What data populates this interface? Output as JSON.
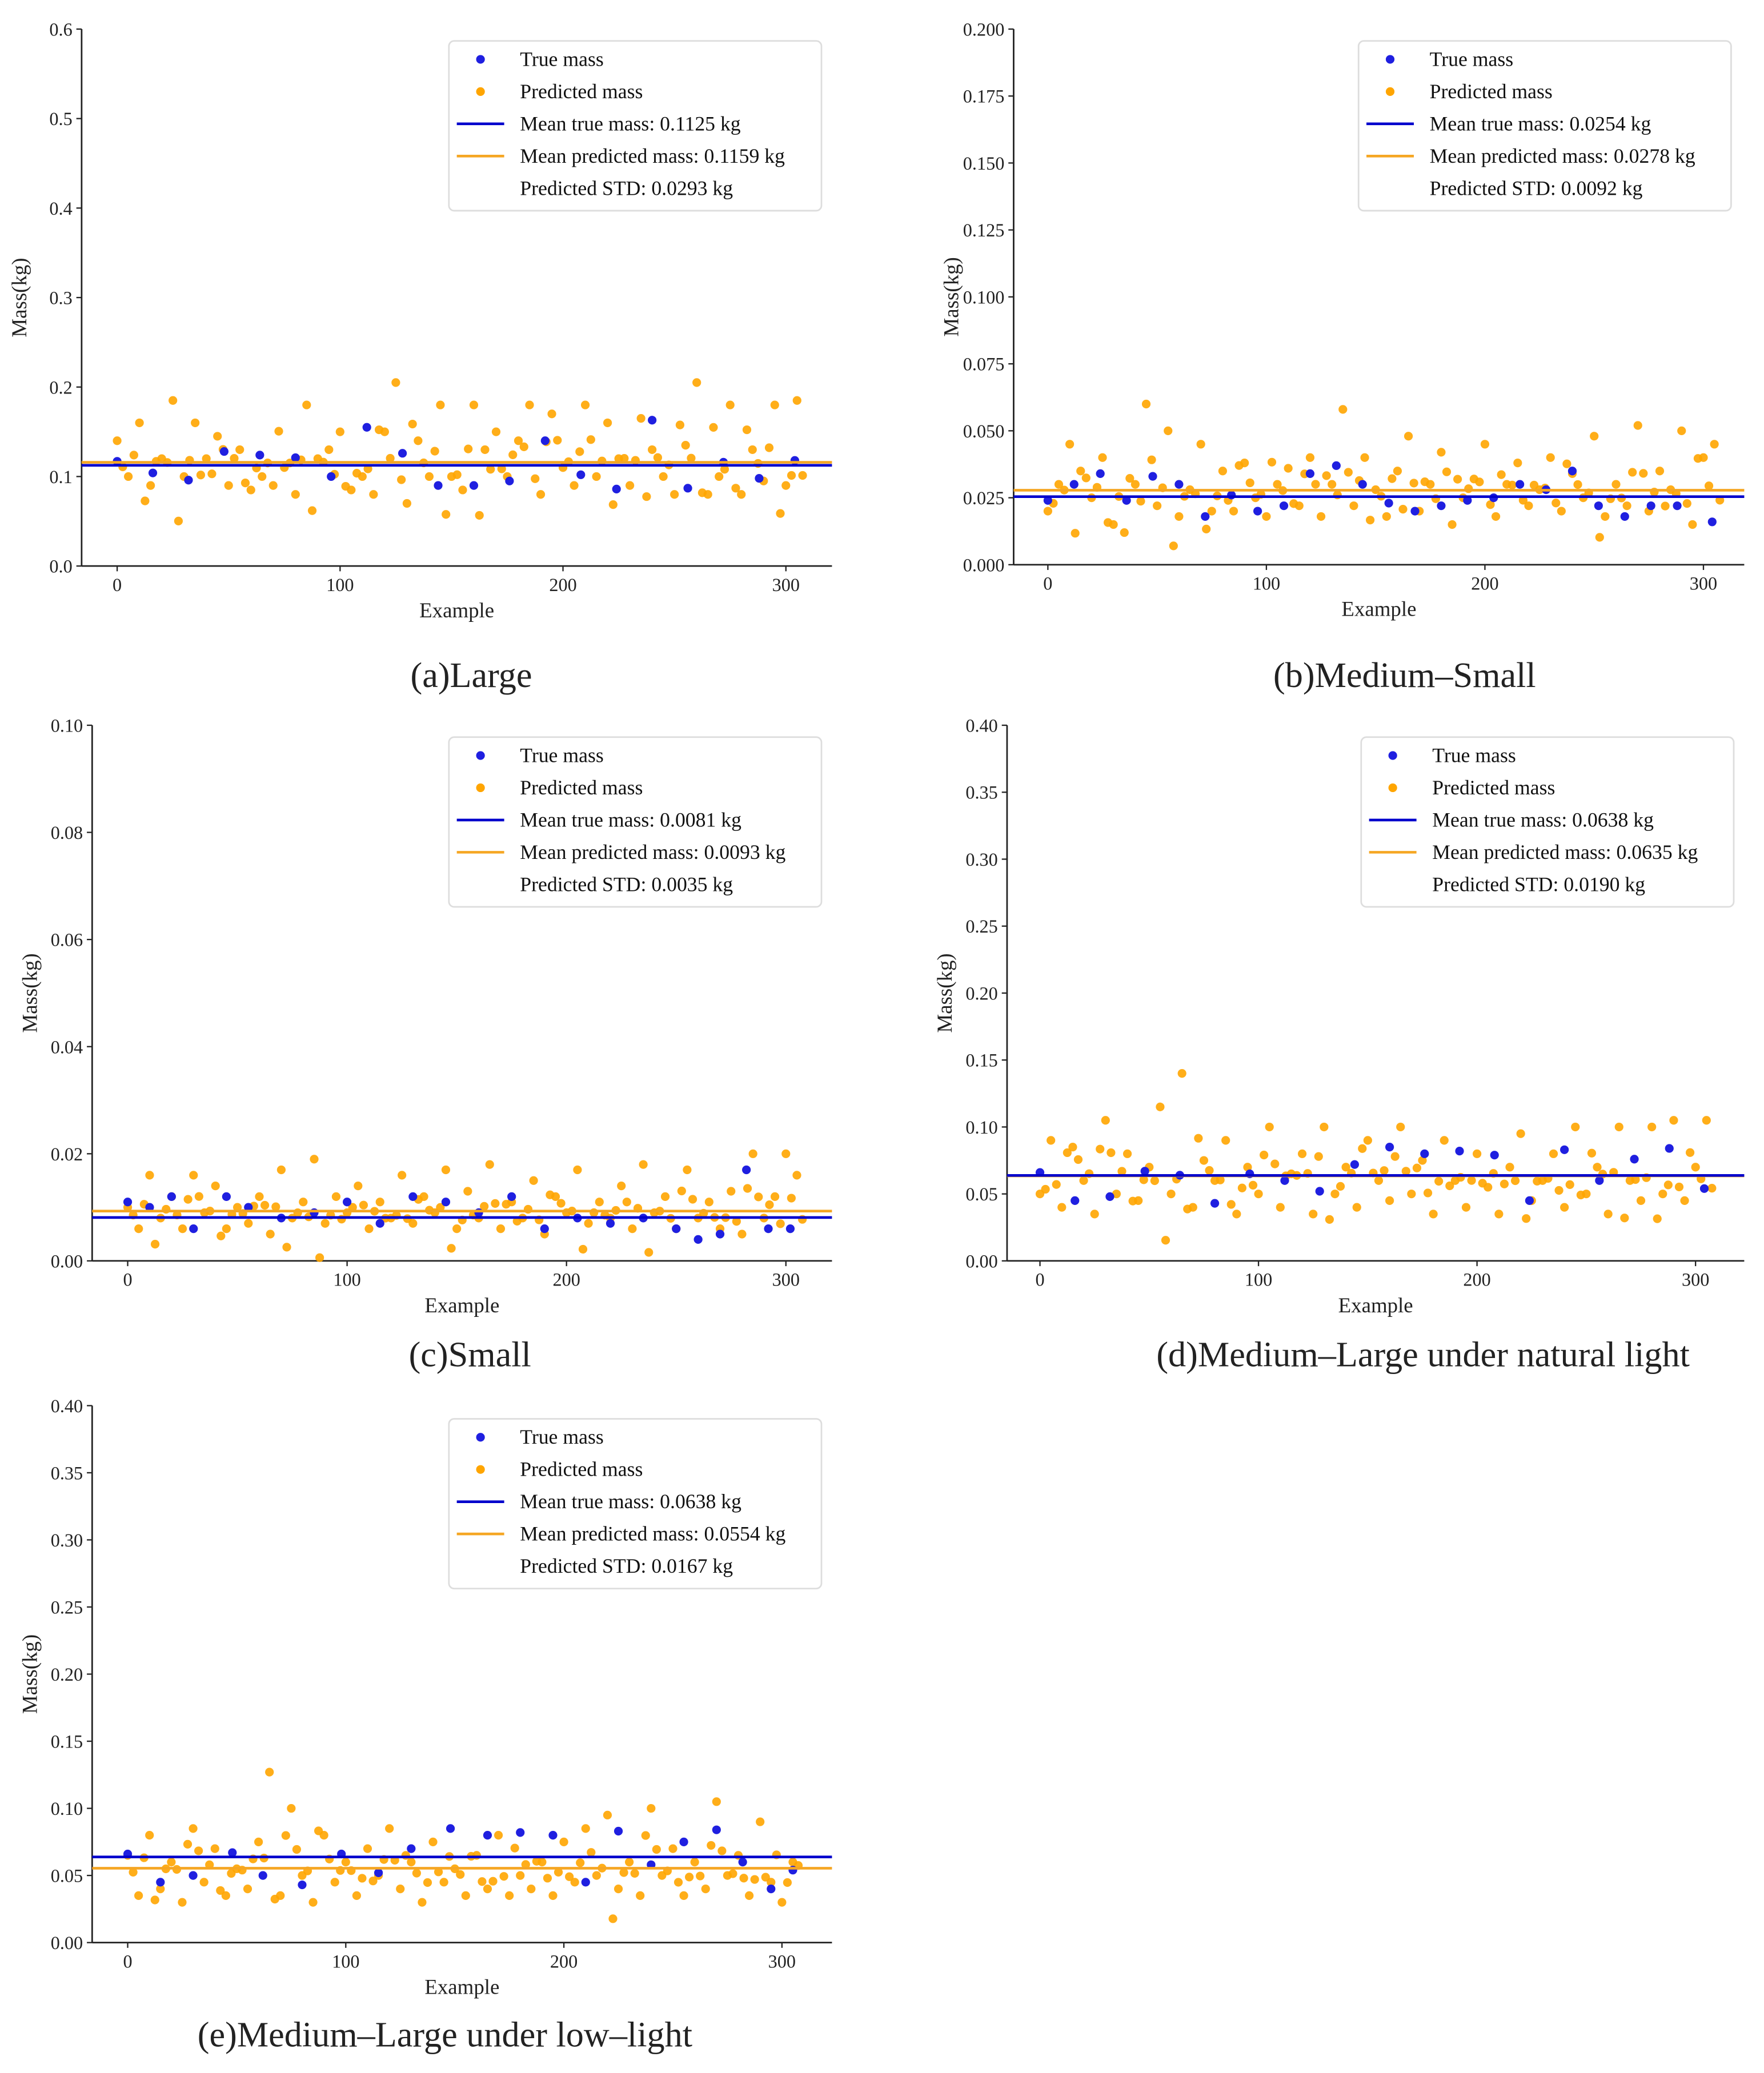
{
  "colors": {
    "true": "#1f1fe0",
    "predicted": "#ffa500",
    "true_line": "#0000cc",
    "pred_line": "#f5a623"
  },
  "chart_data": [
    {
      "type": "scatter",
      "caption": "(a)Large",
      "xlabel": "Example",
      "ylabel": "Mass(kg)",
      "xlim": [
        -16,
        322
      ],
      "ylim": [
        0,
        0.6
      ],
      "xticks": [
        {
          "v": 0,
          "l": "0"
        },
        {
          "v": 100,
          "l": "100"
        },
        {
          "v": 200,
          "l": "200"
        },
        {
          "v": 300,
          "l": "300"
        }
      ],
      "yticks": [
        {
          "v": 0,
          "l": "0.0"
        },
        {
          "v": 0.1,
          "l": "0.1"
        },
        {
          "v": 0.2,
          "l": "0.2"
        },
        {
          "v": 0.3,
          "l": "0.3"
        },
        {
          "v": 0.4,
          "l": "0.4"
        },
        {
          "v": 0.5,
          "l": "0.5"
        },
        {
          "v": 0.6,
          "l": "0.6"
        }
      ],
      "legend": {
        "true": "True mass",
        "predicted": "Predicted mass",
        "mean_true": "Mean true mass: 0.1125 kg",
        "mean_pred": "Mean predicted mass: 0.1159 kg",
        "std": "Predicted STD: 0.0293 kg",
        "placement": "top-right"
      },
      "mean_true": 0.1125,
      "mean_pred": 0.1159,
      "pred_step": 5,
      "predicted": [
        0.14,
        0.1,
        0.16,
        0.09,
        0.12,
        0.185,
        0.1,
        0.16,
        0.12,
        0.145,
        0.09,
        0.13,
        0.085,
        0.1,
        0.09,
        0.11,
        0.08,
        0.18,
        0.12,
        0.13,
        0.15,
        0.085,
        0.1,
        0.08,
        0.15,
        0.205,
        0.07,
        0.14,
        0.1,
        0.18,
        0.1,
        0.085,
        0.18,
        0.13,
        0.15,
        0.1,
        0.14,
        0.18,
        0.08,
        0.17,
        0.11,
        0.09,
        0.18,
        0.1,
        0.16,
        0.12,
        0.09,
        0.165,
        0.13,
        0.1,
        0.08,
        0.135,
        0.205,
        0.08,
        0.1,
        0.18,
        0.08,
        0.13,
        0.095,
        0.18,
        0.09,
        0.185
      ],
      "true_x": [
        0,
        16,
        32,
        48,
        64,
        80,
        96,
        112,
        128,
        144,
        160,
        176,
        192,
        208,
        224,
        240,
        256,
        272,
        288,
        304
      ],
      "true_y": [
        0.117,
        0.104,
        0.096,
        0.128,
        0.124,
        0.121,
        0.1,
        0.155,
        0.126,
        0.09,
        0.09,
        0.095,
        0.14,
        0.102,
        0.086,
        0.163,
        0.087,
        0.116,
        0.098,
        0.118
      ]
    },
    {
      "type": "scatter",
      "caption": "(b)Medium–Small",
      "xlabel": "Example",
      "ylabel": "Mass(kg)",
      "xlim": [
        -16,
        322
      ],
      "ylim": [
        0,
        0.2
      ],
      "xticks": [
        {
          "v": 0,
          "l": "0"
        },
        {
          "v": 100,
          "l": "100"
        },
        {
          "v": 200,
          "l": "200"
        },
        {
          "v": 300,
          "l": "300"
        }
      ],
      "yticks": [
        {
          "v": 0,
          "l": "0.000"
        },
        {
          "v": 0.025,
          "l": "0.025"
        },
        {
          "v": 0.05,
          "l": "0.050"
        },
        {
          "v": 0.075,
          "l": "0.075"
        },
        {
          "v": 0.1,
          "l": "0.100"
        },
        {
          "v": 0.125,
          "l": "0.125"
        },
        {
          "v": 0.15,
          "l": "0.150"
        },
        {
          "v": 0.175,
          "l": "0.175"
        },
        {
          "v": 0.2,
          "l": "0.200"
        }
      ],
      "legend": {
        "true": "True mass",
        "predicted": "Predicted mass",
        "mean_true": "Mean true mass: 0.0254 kg",
        "mean_pred": "Mean predicted mass: 0.0278 kg",
        "std": "Predicted STD: 0.0092 kg",
        "placement": "top-right"
      },
      "mean_true": 0.0254,
      "mean_pred": 0.0278,
      "pred_step": 5,
      "predicted": [
        0.02,
        0.03,
        0.045,
        0.035,
        0.025,
        0.04,
        0.015,
        0.012,
        0.03,
        0.06,
        0.022,
        0.05,
        0.018,
        0.028,
        0.045,
        0.02,
        0.035,
        0.02,
        0.038,
        0.025,
        0.018,
        0.03,
        0.036,
        0.022,
        0.04,
        0.018,
        0.03,
        0.058,
        0.022,
        0.04,
        0.028,
        0.018,
        0.035,
        0.048,
        0.02,
        0.03,
        0.042,
        0.015,
        0.025,
        0.032,
        0.045,
        0.018,
        0.03,
        0.038,
        0.022,
        0.028,
        0.04,
        0.02,
        0.034,
        0.025,
        0.048,
        0.018,
        0.03,
        0.022,
        0.052,
        0.02,
        0.035,
        0.028,
        0.05,
        0.015,
        0.04,
        0.045
      ],
      "true_x": [
        0,
        12,
        24,
        36,
        48,
        60,
        72,
        84,
        96,
        108,
        120,
        132,
        144,
        156,
        168,
        180,
        192,
        204,
        216,
        228,
        240,
        252,
        264,
        276,
        288,
        304
      ],
      "true_y": [
        0.024,
        0.03,
        0.034,
        0.024,
        0.033,
        0.03,
        0.018,
        0.026,
        0.02,
        0.022,
        0.034,
        0.037,
        0.03,
        0.023,
        0.02,
        0.022,
        0.024,
        0.025,
        0.03,
        0.028,
        0.035,
        0.022,
        0.018,
        0.022,
        0.022,
        0.016
      ]
    },
    {
      "type": "scatter",
      "caption": "(c)Small",
      "xlabel": "Example",
      "ylabel": "Mass(kg)",
      "xlim": [
        -16,
        322
      ],
      "ylim": [
        0,
        0.1
      ],
      "xticks": [
        {
          "v": 0,
          "l": "0"
        },
        {
          "v": 100,
          "l": "100"
        },
        {
          "v": 200,
          "l": "200"
        },
        {
          "v": 300,
          "l": "300"
        }
      ],
      "yticks": [
        {
          "v": 0,
          "l": "0.00"
        },
        {
          "v": 0.02,
          "l": "0.02"
        },
        {
          "v": 0.04,
          "l": "0.04"
        },
        {
          "v": 0.06,
          "l": "0.06"
        },
        {
          "v": 0.08,
          "l": "0.08"
        },
        {
          "v": 0.1,
          "l": "0.10"
        }
      ],
      "legend": {
        "true": "True mass",
        "predicted": "Predicted mass",
        "mean_true": "Mean true mass: 0.0081 kg",
        "mean_pred": "Mean predicted mass: 0.0093 kg",
        "std": "Predicted STD: 0.0035 kg",
        "placement": "top-right"
      },
      "mean_true": 0.0081,
      "mean_pred": 0.0093,
      "pred_step": 5,
      "predicted": [
        0.01,
        0.006,
        0.016,
        0.008,
        0.012,
        0.006,
        0.016,
        0.009,
        0.014,
        0.006,
        0.01,
        0.007,
        0.012,
        0.005,
        0.017,
        0.008,
        0.011,
        0.019,
        0.007,
        0.012,
        0.009,
        0.014,
        0.006,
        0.011,
        0.008,
        0.016,
        0.007,
        0.012,
        0.009,
        0.017,
        0.006,
        0.013,
        0.008,
        0.018,
        0.006,
        0.011,
        0.008,
        0.015,
        0.005,
        0.012,
        0.009,
        0.017,
        0.007,
        0.011,
        0.008,
        0.014,
        0.006,
        0.018,
        0.009,
        0.012,
        0.006,
        0.017,
        0.008,
        0.011,
        0.006,
        0.013,
        0.005,
        0.02,
        0.008,
        0.012,
        0.02,
        0.016
      ],
      "true_x": [
        0,
        10,
        20,
        30,
        45,
        55,
        70,
        85,
        100,
        115,
        130,
        145,
        160,
        175,
        190,
        205,
        220,
        235,
        250,
        260,
        270,
        282,
        292,
        302
      ],
      "true_y": [
        0.011,
        0.01,
        0.012,
        0.006,
        0.012,
        0.01,
        0.008,
        0.009,
        0.011,
        0.007,
        0.012,
        0.011,
        0.009,
        0.012,
        0.006,
        0.008,
        0.007,
        0.008,
        0.006,
        0.004,
        0.005,
        0.017,
        0.006,
        0.006
      ]
    },
    {
      "type": "scatter",
      "caption": "(d)Medium–Large under natural light",
      "xlabel": "Example",
      "ylabel": "Mass(kg)",
      "xlim": [
        -16,
        322
      ],
      "ylim": [
        0,
        0.4
      ],
      "xticks": [
        {
          "v": 0,
          "l": "0"
        },
        {
          "v": 100,
          "l": "100"
        },
        {
          "v": 200,
          "l": "200"
        },
        {
          "v": 300,
          "l": "300"
        }
      ],
      "yticks": [
        {
          "v": 0,
          "l": "0.00"
        },
        {
          "v": 0.05,
          "l": "0.05"
        },
        {
          "v": 0.1,
          "l": "0.10"
        },
        {
          "v": 0.15,
          "l": "0.15"
        },
        {
          "v": 0.2,
          "l": "0.20"
        },
        {
          "v": 0.25,
          "l": "0.25"
        },
        {
          "v": 0.3,
          "l": "0.30"
        },
        {
          "v": 0.35,
          "l": "0.35"
        },
        {
          "v": 0.4,
          "l": "0.40"
        }
      ],
      "legend": {
        "true": "True mass",
        "predicted": "Predicted mass",
        "mean_true": "Mean true mass: 0.0638 kg",
        "mean_pred": "Mean predicted mass: 0.0635 kg",
        "std": "Predicted STD: 0.0190 kg",
        "placement": "top-right"
      },
      "mean_true": 0.0638,
      "mean_pred": 0.0635,
      "pred_step": 5,
      "predicted": [
        0.05,
        0.09,
        0.04,
        0.085,
        0.06,
        0.035,
        0.105,
        0.05,
        0.08,
        0.045,
        0.07,
        0.115,
        0.05,
        0.14,
        0.04,
        0.075,
        0.06,
        0.09,
        0.035,
        0.07,
        0.05,
        0.1,
        0.04,
        0.065,
        0.08,
        0.035,
        0.1,
        0.05,
        0.07,
        0.04,
        0.09,
        0.06,
        0.045,
        0.1,
        0.05,
        0.075,
        0.035,
        0.09,
        0.06,
        0.04,
        0.08,
        0.055,
        0.035,
        0.07,
        0.095,
        0.045,
        0.06,
        0.08,
        0.04,
        0.1,
        0.05,
        0.07,
        0.035,
        0.1,
        0.06,
        0.045,
        0.1,
        0.05,
        0.105,
        0.045,
        0.07,
        0.105
      ],
      "true_x": [
        0,
        16,
        32,
        48,
        64,
        80,
        96,
        112,
        128,
        144,
        160,
        176,
        192,
        208,
        224,
        240,
        256,
        272,
        288,
        304
      ],
      "true_y": [
        0.066,
        0.045,
        0.048,
        0.067,
        0.064,
        0.043,
        0.065,
        0.06,
        0.052,
        0.072,
        0.085,
        0.08,
        0.082,
        0.079,
        0.045,
        0.083,
        0.06,
        0.076,
        0.084,
        0.054
      ]
    },
    {
      "type": "scatter",
      "caption": "(e)Medium–Large under low–light",
      "xlabel": "Example",
      "ylabel": "Mass(kg)",
      "xlim": [
        -16,
        322
      ],
      "ylim": [
        0,
        0.4
      ],
      "xticks": [
        {
          "v": 0,
          "l": "0"
        },
        {
          "v": 100,
          "l": "100"
        },
        {
          "v": 200,
          "l": "200"
        },
        {
          "v": 300,
          "l": "300"
        }
      ],
      "yticks": [
        {
          "v": 0,
          "l": "0.00"
        },
        {
          "v": 0.05,
          "l": "0.05"
        },
        {
          "v": 0.1,
          "l": "0.10"
        },
        {
          "v": 0.15,
          "l": "0.15"
        },
        {
          "v": 0.2,
          "l": "0.20"
        },
        {
          "v": 0.25,
          "l": "0.25"
        },
        {
          "v": 0.3,
          "l": "0.30"
        },
        {
          "v": 0.35,
          "l": "0.35"
        },
        {
          "v": 0.4,
          "l": "0.40"
        }
      ],
      "legend": {
        "true": "True mass",
        "predicted": "Predicted mass",
        "mean_true": "Mean true mass: 0.0638 kg",
        "mean_pred": "Mean predicted mass: 0.0554 kg",
        "std": "Predicted STD: 0.0167 kg",
        "placement": "top-right"
      },
      "mean_true": 0.0638,
      "mean_pred": 0.0554,
      "pred_step": 5,
      "predicted": [
        0.065,
        0.035,
        0.08,
        0.04,
        0.06,
        0.03,
        0.085,
        0.045,
        0.07,
        0.035,
        0.055,
        0.04,
        0.075,
        0.127,
        0.035,
        0.1,
        0.05,
        0.03,
        0.08,
        0.045,
        0.06,
        0.035,
        0.07,
        0.05,
        0.085,
        0.04,
        0.06,
        0.03,
        0.075,
        0.045,
        0.055,
        0.035,
        0.065,
        0.04,
        0.08,
        0.035,
        0.05,
        0.04,
        0.06,
        0.035,
        0.075,
        0.045,
        0.085,
        0.05,
        0.095,
        0.04,
        0.06,
        0.035,
        0.1,
        0.05,
        0.07,
        0.035,
        0.06,
        0.04,
        0.105,
        0.05,
        0.065,
        0.035,
        0.09,
        0.045,
        0.03,
        0.06
      ],
      "true_x": [
        0,
        15,
        30,
        48,
        62,
        80,
        98,
        115,
        130,
        148,
        165,
        180,
        195,
        210,
        225,
        240,
        255,
        270,
        282,
        295,
        305
      ],
      "true_y": [
        0.066,
        0.045,
        0.05,
        0.067,
        0.05,
        0.043,
        0.066,
        0.052,
        0.07,
        0.085,
        0.08,
        0.082,
        0.08,
        0.045,
        0.083,
        0.058,
        0.075,
        0.084,
        0.06,
        0.04,
        0.054
      ]
    }
  ]
}
